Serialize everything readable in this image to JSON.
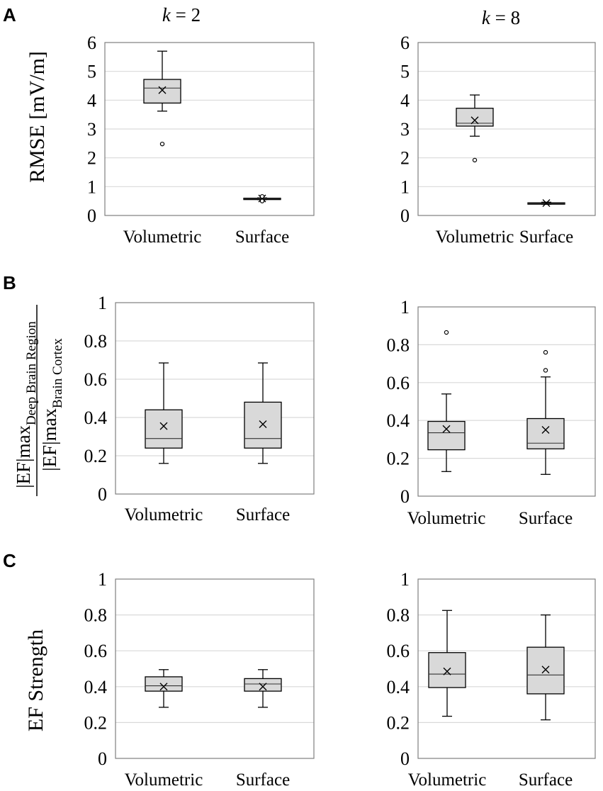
{
  "panels": {
    "A": {
      "letter": "A",
      "ylabel": "RMSE [mV/m]"
    },
    "B": {
      "letter": "B",
      "ylabel_num_main": "|EF|max",
      "ylabel_num_sub": "Deep Brain Region",
      "ylabel_den_main": "|EF|max",
      "ylabel_den_sub": "Brain Cortex"
    },
    "C": {
      "letter": "C",
      "ylabel": "EF Strength"
    }
  },
  "columns": [
    {
      "k_label": "k",
      "eq": " = 2"
    },
    {
      "k_label": "k",
      "eq": " = 8"
    }
  ],
  "chart_data": [
    {
      "type": "box",
      "panel": "A",
      "title": "k = 2",
      "categories": [
        "Volumetric",
        "Surface"
      ],
      "ylim": [
        0,
        6
      ],
      "yticks": [
        "0",
        "1",
        "2",
        "3",
        "4",
        "5",
        "6"
      ],
      "ytick_values": [
        0,
        1,
        2,
        3,
        4,
        5,
        6
      ],
      "series": [
        {
          "name": "Volumetric",
          "min": 3.62,
          "q1": 3.9,
          "median": 4.42,
          "q3": 4.72,
          "max": 5.7,
          "mean": 4.35,
          "outliers": [
            2.48
          ]
        },
        {
          "name": "Surface",
          "min": 0.55,
          "q1": 0.57,
          "median": 0.58,
          "q3": 0.6,
          "max": 0.61,
          "mean": 0.59,
          "outliers": [
            0.5,
            0.66
          ]
        }
      ]
    },
    {
      "type": "box",
      "panel": "A",
      "title": "k = 8",
      "categories": [
        "Volumetric",
        "Surface"
      ],
      "ylim": [
        0,
        6
      ],
      "yticks": [
        "0",
        "1",
        "2",
        "3",
        "4",
        "5",
        "6"
      ],
      "ytick_values": [
        0,
        1,
        2,
        3,
        4,
        5,
        6
      ],
      "series": [
        {
          "name": "Volumetric",
          "min": 2.75,
          "q1": 3.1,
          "median": 3.2,
          "q3": 3.72,
          "max": 4.18,
          "mean": 3.3,
          "outliers": [
            1.92
          ]
        },
        {
          "name": "Surface",
          "min": 0.39,
          "q1": 0.41,
          "median": 0.42,
          "q3": 0.44,
          "max": 0.46,
          "mean": 0.43,
          "outliers": []
        }
      ]
    },
    {
      "type": "box",
      "panel": "B",
      "title": "k = 2",
      "categories": [
        "Volumetric",
        "Surface"
      ],
      "ylim": [
        0,
        1
      ],
      "yticks": [
        "0",
        "0.2",
        "0.4",
        "0.6",
        "0.8",
        "1"
      ],
      "ytick_values": [
        0,
        0.2,
        0.4,
        0.6,
        0.8,
        1
      ],
      "series": [
        {
          "name": "Volumetric",
          "min": 0.16,
          "q1": 0.24,
          "median": 0.29,
          "q3": 0.44,
          "max": 0.685,
          "mean": 0.355,
          "outliers": []
        },
        {
          "name": "Surface",
          "min": 0.16,
          "q1": 0.24,
          "median": 0.29,
          "q3": 0.48,
          "max": 0.685,
          "mean": 0.365,
          "outliers": []
        }
      ]
    },
    {
      "type": "box",
      "panel": "B",
      "title": "k = 8",
      "categories": [
        "Volumetric",
        "Surface"
      ],
      "ylim": [
        0,
        1
      ],
      "yticks": [
        "0",
        "0.2",
        "0.4",
        "0.6",
        "0.8",
        "1"
      ],
      "ytick_values": [
        0,
        0.2,
        0.4,
        0.6,
        0.8,
        1
      ],
      "series": [
        {
          "name": "Volumetric",
          "min": 0.13,
          "q1": 0.245,
          "median": 0.335,
          "q3": 0.395,
          "max": 0.54,
          "mean": 0.355,
          "outliers": [
            0.865
          ]
        },
        {
          "name": "Surface",
          "min": 0.115,
          "q1": 0.25,
          "median": 0.28,
          "q3": 0.41,
          "max": 0.63,
          "mean": 0.35,
          "outliers": [
            0.665,
            0.76
          ]
        }
      ]
    },
    {
      "type": "box",
      "panel": "C",
      "title": "k = 2",
      "categories": [
        "Volumetric",
        "Surface"
      ],
      "ylim": [
        0,
        1
      ],
      "yticks": [
        "0",
        "0.2",
        "0.4",
        "0.6",
        "0.8",
        "1"
      ],
      "ytick_values": [
        0,
        0.2,
        0.4,
        0.6,
        0.8,
        1
      ],
      "series": [
        {
          "name": "Volumetric",
          "min": 0.285,
          "q1": 0.375,
          "median": 0.405,
          "q3": 0.455,
          "max": 0.495,
          "mean": 0.4,
          "outliers": []
        },
        {
          "name": "Surface",
          "min": 0.285,
          "q1": 0.375,
          "median": 0.415,
          "q3": 0.445,
          "max": 0.495,
          "mean": 0.4,
          "outliers": []
        }
      ]
    },
    {
      "type": "box",
      "panel": "C",
      "title": "k = 8",
      "categories": [
        "Volumetric",
        "Surface"
      ],
      "ylim": [
        0,
        1
      ],
      "yticks": [
        "0",
        "0.2",
        "0.4",
        "0.6",
        "0.8",
        "1"
      ],
      "ytick_values": [
        0,
        0.2,
        0.4,
        0.6,
        0.8,
        1
      ],
      "series": [
        {
          "name": "Volumetric",
          "min": 0.235,
          "q1": 0.395,
          "median": 0.47,
          "q3": 0.59,
          "max": 0.825,
          "mean": 0.485,
          "outliers": []
        },
        {
          "name": "Surface",
          "min": 0.215,
          "q1": 0.36,
          "median": 0.465,
          "q3": 0.62,
          "max": 0.8,
          "mean": 0.495,
          "outliers": []
        }
      ]
    }
  ],
  "colors": {
    "box_fill": "#d9d9d9",
    "stroke": "#000000",
    "grid": "#d9d9d9",
    "frame": "#7f7f7f"
  }
}
